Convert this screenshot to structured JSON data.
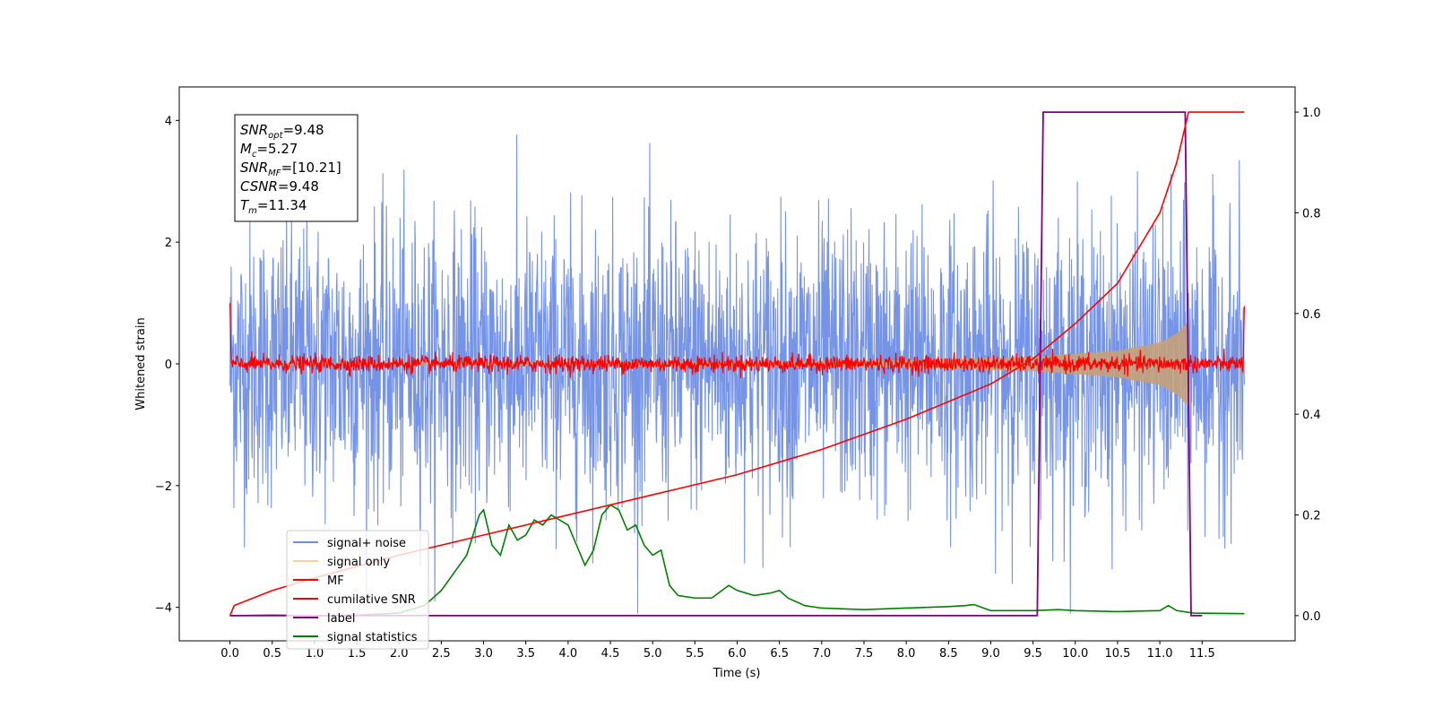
{
  "chart_data": {
    "type": "line",
    "xlabel": "Time (s)",
    "ylabel": "Whitened strain",
    "xlim": [
      -0.6,
      12.6
    ],
    "ylim": [
      -4.55,
      4.55
    ],
    "y2lim": [
      -0.05,
      1.05
    ],
    "xticks": [
      "0.0",
      "0.5",
      "1.0",
      "1.5",
      "2.0",
      "2.5",
      "3.0",
      "3.5",
      "4.0",
      "4.5",
      "5.0",
      "5.5",
      "6.0",
      "6.5",
      "7.0",
      "7.5",
      "8.0",
      "8.5",
      "9.0",
      "9.5",
      "10.0",
      "10.5",
      "11.0",
      "11.5"
    ],
    "xtick_values": [
      0,
      0.5,
      1,
      1.5,
      2,
      2.5,
      3,
      3.5,
      4,
      4.5,
      5,
      5.5,
      6,
      6.5,
      7,
      7.5,
      8,
      8.5,
      9,
      9.5,
      10,
      10.5,
      11,
      11.5
    ],
    "yticks": [
      "−4",
      "−2",
      "0",
      "2",
      "4"
    ],
    "ytick_values": [
      -4,
      -2,
      0,
      2,
      4
    ],
    "y2ticks": [
      "0.0",
      "0.2",
      "0.4",
      "0.6",
      "0.8",
      "1.0"
    ],
    "y2tick_values": [
      0,
      0.2,
      0.4,
      0.6,
      0.8,
      1.0
    ],
    "info_box": {
      "lines": [
        {
          "sym": "SNR",
          "sub": "opt",
          "val": "=9.48"
        },
        {
          "sym": "M",
          "sub": "c",
          "val": "=5.27"
        },
        {
          "sym": "SNR",
          "sub": "MF",
          "val": "=[10.21]"
        },
        {
          "sym": "CSNR",
          "sub": "",
          "val": "=9.48"
        },
        {
          "sym": "T",
          "sub": "m",
          "val": "=11.34"
        }
      ]
    },
    "legend": {
      "placement": "lower-left",
      "entries": [
        {
          "label": "signal+ noise",
          "color": "#6f8ee6"
        },
        {
          "label": "signal only",
          "color": "#f7d48c"
        },
        {
          "label": "MF",
          "color": "#ff0000"
        },
        {
          "label": "cumilative SNR",
          "color": "#ff0000"
        },
        {
          "label": "label",
          "color": "#800080"
        },
        {
          "label": "signal statistics",
          "color": "#008000"
        }
      ]
    },
    "series": [
      {
        "name": "signal+ noise",
        "axis": "left",
        "x_range": [
          0,
          12
        ],
        "amplitude_peak": 4.1,
        "color": "#6f8ee6"
      },
      {
        "name": "signal only",
        "axis": "left",
        "x_range": [
          0,
          11.34
        ],
        "envelope": [
          [
            0,
            0.02
          ],
          [
            4,
            0.03
          ],
          [
            8,
            0.06
          ],
          [
            9.5,
            0.12
          ],
          [
            10.5,
            0.22
          ],
          [
            11,
            0.35
          ],
          [
            11.2,
            0.5
          ],
          [
            11.34,
            0.7
          ]
        ],
        "color": "#c4a07a"
      },
      {
        "name": "MF",
        "axis": "left",
        "x_range": [
          0,
          12
        ],
        "amplitude": 0.15,
        "color": "#ff0000"
      },
      {
        "name": "cumilative SNR",
        "axis": "right",
        "x": [
          0,
          0.05,
          0.5,
          1,
          2,
          3,
          4,
          5,
          6,
          7,
          8,
          9,
          9.5,
          10,
          10.5,
          11,
          11.2,
          11.34,
          12
        ],
        "y": [
          0,
          0.02,
          0.05,
          0.075,
          0.12,
          0.16,
          0.2,
          0.24,
          0.28,
          0.33,
          0.39,
          0.46,
          0.51,
          0.58,
          0.66,
          0.8,
          0.9,
          1.0,
          1.0
        ],
        "color": "#ff0000"
      },
      {
        "name": "label",
        "axis": "right",
        "x": [
          0,
          9.55,
          9.62,
          11.3,
          11.37,
          11.5
        ],
        "y": [
          0,
          0,
          1,
          1,
          0,
          0
        ],
        "color": "#800080"
      },
      {
        "name": "signal statistics",
        "axis": "right",
        "x": [
          0,
          0.5,
          1,
          1.5,
          2,
          2.3,
          2.5,
          2.8,
          2.95,
          3.0,
          3.1,
          3.2,
          3.3,
          3.4,
          3.5,
          3.6,
          3.7,
          3.8,
          3.9,
          4.0,
          4.1,
          4.2,
          4.3,
          4.4,
          4.5,
          4.6,
          4.7,
          4.8,
          4.9,
          5.0,
          5.1,
          5.2,
          5.3,
          5.5,
          5.7,
          5.9,
          6.0,
          6.2,
          6.4,
          6.5,
          6.6,
          6.8,
          7.0,
          7.5,
          8.0,
          8.5,
          8.7,
          8.8,
          9.0,
          9.5,
          9.8,
          10.0,
          10.5,
          11.0,
          11.1,
          11.2,
          11.4,
          12.0
        ],
        "y": [
          0,
          0.001,
          0,
          0.001,
          0.005,
          0.02,
          0.05,
          0.12,
          0.2,
          0.21,
          0.14,
          0.12,
          0.18,
          0.15,
          0.16,
          0.19,
          0.18,
          0.2,
          0.19,
          0.18,
          0.14,
          0.1,
          0.13,
          0.2,
          0.22,
          0.21,
          0.17,
          0.18,
          0.14,
          0.12,
          0.13,
          0.06,
          0.04,
          0.035,
          0.035,
          0.06,
          0.05,
          0.04,
          0.045,
          0.05,
          0.035,
          0.02,
          0.015,
          0.012,
          0.015,
          0.018,
          0.02,
          0.022,
          0.01,
          0.01,
          0.012,
          0.01,
          0.008,
          0.01,
          0.02,
          0.01,
          0.005,
          0.004
        ],
        "color": "#008000"
      }
    ]
  }
}
